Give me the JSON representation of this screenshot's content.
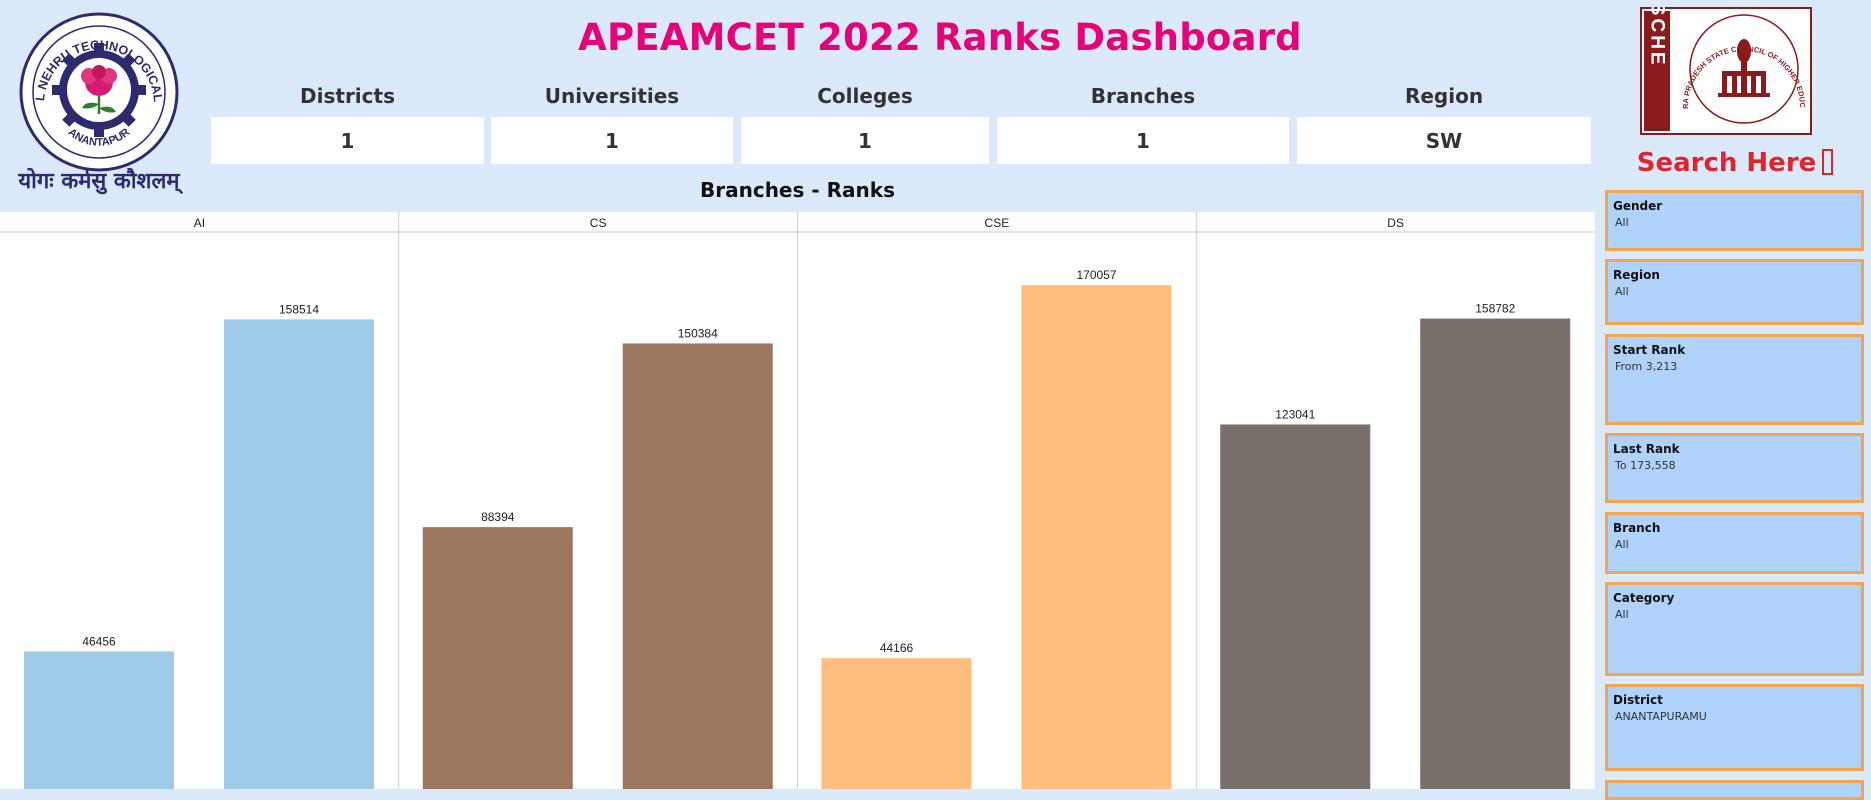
{
  "header": {
    "title": "APEAMCET 2022 Ranks Dashboard"
  },
  "logos": {
    "left": {
      "ring_text": "JAWAHARLAL NEHRU TECHNOLOGICAL UNIVERSITY",
      "bottom_text": "ANANTAPUR",
      "motto": "योगः कर्मसु कौशलम्"
    },
    "right": {
      "vertical_text": "APSCHE",
      "ring_text": "ANDHRA PRADESH STATE COUNCIL OF HIGHER EDUCATION"
    }
  },
  "kpis": [
    {
      "label": "Districts",
      "value": "1"
    },
    {
      "label": "Universities",
      "value": "1"
    },
    {
      "label": "Colleges",
      "value": "1"
    },
    {
      "label": "Branches",
      "value": "1"
    },
    {
      "label": "Region",
      "value": "SW"
    }
  ],
  "search": {
    "title": "Search Here"
  },
  "filters": [
    {
      "label": "Gender",
      "value": "All"
    },
    {
      "label": "Region",
      "value": "All"
    },
    {
      "label": "Start Rank",
      "value": "From 3,213"
    },
    {
      "label": "Last Rank",
      "value": "To 173,558"
    },
    {
      "label": "Branch",
      "value": "All"
    },
    {
      "label": "Category",
      "value": "All"
    },
    {
      "label": "District",
      "value": "ANANTAPURAMU"
    }
  ],
  "chart_data": {
    "type": "bar",
    "title": "Branches - Ranks",
    "panels": [
      {
        "name": "AI",
        "values": [
          46456,
          158514
        ],
        "color": "#a0cbe8"
      },
      {
        "name": "CS",
        "values": [
          88394,
          150384
        ],
        "color": "#9c775e"
      },
      {
        "name": "CSE",
        "values": [
          44166,
          170057
        ],
        "color": "#ffbe7d"
      },
      {
        "name": "DS",
        "values": [
          123041,
          158782
        ],
        "color": "#796f6b"
      }
    ],
    "ylim": [
      0,
      188000
    ],
    "grid": false
  }
}
